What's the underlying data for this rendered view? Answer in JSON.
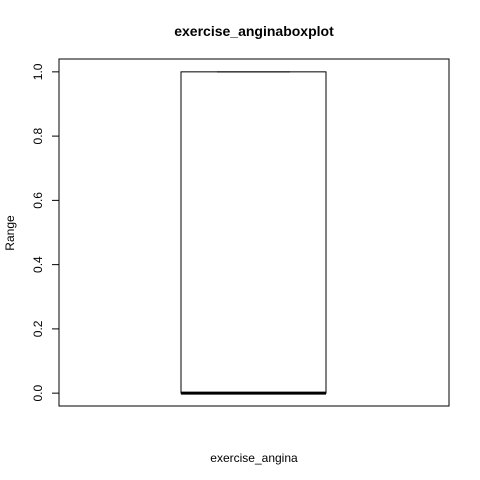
{
  "chart_data": {
    "type": "boxplot",
    "title": "exercise_anginaboxplot",
    "xlabel": "exercise_angina",
    "ylabel": "Range",
    "ylim": [
      -0.04,
      1.04
    ],
    "yticks": [
      0.0,
      0.2,
      0.4,
      0.6,
      0.8,
      1.0
    ],
    "ytick_labels": [
      "0.0",
      "0.2",
      "0.4",
      "0.6",
      "0.8",
      "1.0"
    ],
    "grid": false,
    "box": {
      "min": 0,
      "q1": 0,
      "median": 0,
      "q3": 1,
      "max": 1
    }
  }
}
